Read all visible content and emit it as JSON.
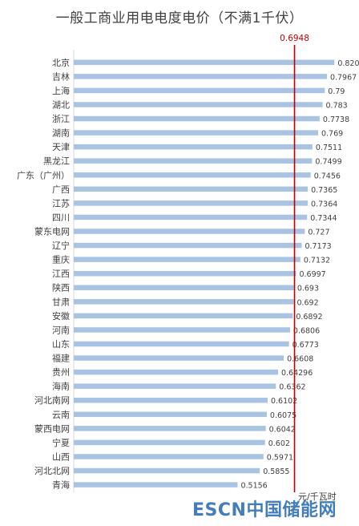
{
  "chart_data": {
    "type": "bar",
    "orientation": "horizontal",
    "title": "一般工商业用电电度电价（不满1千伏）",
    "unit": "元/千瓦时",
    "categories": [
      "北京",
      "吉林",
      "上海",
      "湖北",
      "浙江",
      "湖南",
      "天津",
      "黑龙江",
      "广东（广州）",
      "广西",
      "江苏",
      "四川",
      "蒙东电网",
      "辽宁",
      "重庆",
      "江西",
      "陕西",
      "甘肃",
      "安徽",
      "河南",
      "山东",
      "福建",
      "贵州",
      "海南",
      "河北南网",
      "云南",
      "蒙西电网",
      "宁夏",
      "山西",
      "河北北网",
      "青海"
    ],
    "values": [
      0.8203,
      0.7967,
      0.79,
      0.783,
      0.7738,
      0.769,
      0.7511,
      0.7499,
      0.7456,
      0.7365,
      0.7364,
      0.7344,
      0.727,
      0.7173,
      0.7132,
      0.6997,
      0.693,
      0.692,
      0.6892,
      0.6806,
      0.6773,
      0.6608,
      0.64296,
      0.6362,
      0.6102,
      0.6075,
      0.6042,
      0.602,
      0.5971,
      0.5855,
      0.5156
    ],
    "value_labels": [
      "0.8203",
      "0.7967",
      "0.79",
      "0.783",
      "0.7738",
      "0.769",
      "0.7511",
      "0.7499",
      "0.7456",
      "0.7365",
      "0.7364",
      "0.7344",
      "0.727",
      "0.7173",
      "0.7132",
      "0.6997",
      "0.693",
      "0.692",
      "0.6892",
      "0.6806",
      "0.6773",
      "0.6608",
      "0.64296",
      "0.6362",
      "0.6102",
      "0.6075",
      "0.6042",
      "0.602",
      "0.5971",
      "0.5855",
      "0.5156"
    ],
    "reference_line": {
      "value": 0.6948,
      "label": "0.6948",
      "color": "#c00000"
    },
    "xlim": [
      0,
      0.88
    ],
    "bar_color": "#a9c3e3",
    "grid": false,
    "legend": "none"
  },
  "watermark": {
    "latin": "ESCN",
    "cjk": "中国储能网",
    "color": "#2f6fb3"
  }
}
